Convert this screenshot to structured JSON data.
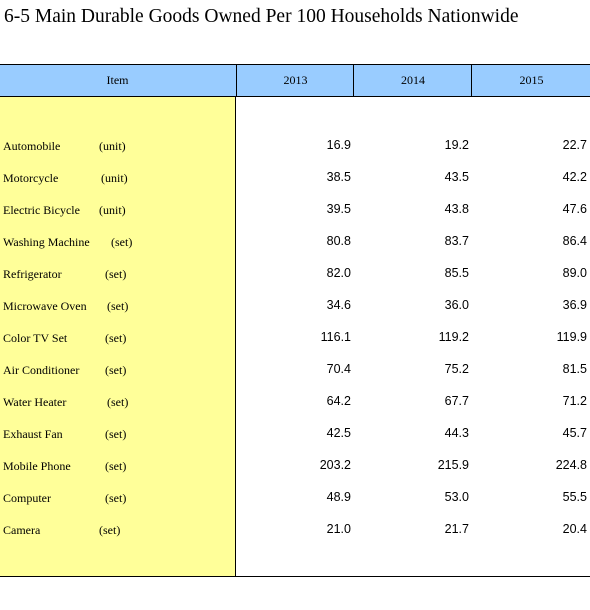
{
  "title": "6-5  Main Durable Goods Owned Per 100 Households Nationwide",
  "header": {
    "item": "Item",
    "years": [
      "2013",
      "2014",
      "2015"
    ]
  },
  "rows": [
    {
      "name": "Automobile",
      "unit": "(unit)",
      "values": [
        "16.9",
        "19.2",
        "22.7"
      ]
    },
    {
      "name": "Motorcycle",
      "unit": "(unit)",
      "values": [
        "38.5",
        "43.5",
        "42.2"
      ]
    },
    {
      "name": "Electric Bicycle",
      "unit": "(unit)",
      "values": [
        "39.5",
        "43.8",
        "47.6"
      ]
    },
    {
      "name": "Washing Machine",
      "unit": "(set)",
      "values": [
        "80.8",
        "83.7",
        "86.4"
      ]
    },
    {
      "name": "Refrigerator",
      "unit": "(set)",
      "values": [
        "82.0",
        "85.5",
        "89.0"
      ]
    },
    {
      "name": "Microwave Oven",
      "unit": "(set)",
      "values": [
        "34.6",
        "36.0",
        "36.9"
      ]
    },
    {
      "name": "Color TV Set",
      "unit": "(set)",
      "values": [
        "116.1",
        "119.2",
        "119.9"
      ]
    },
    {
      "name": "Air Conditioner",
      "unit": "(set)",
      "values": [
        "70.4",
        "75.2",
        "81.5"
      ]
    },
    {
      "name": "Water Heater",
      "unit": "(set)",
      "values": [
        "64.2",
        "67.7",
        "71.2"
      ]
    },
    {
      "name": "Exhaust Fan",
      "unit": "(set)",
      "values": [
        "42.5",
        "44.3",
        "45.7"
      ]
    },
    {
      "name": "Mobile Phone",
      "unit": "(set)",
      "values": [
        "203.2",
        "215.9",
        "224.8"
      ]
    },
    {
      "name": "Computer",
      "unit": "(set)",
      "values": [
        "48.9",
        "53.0",
        "55.5"
      ]
    },
    {
      "name": "Camera",
      "unit": "(set)",
      "values": [
        "21.0",
        "21.7",
        "20.4"
      ]
    }
  ]
}
